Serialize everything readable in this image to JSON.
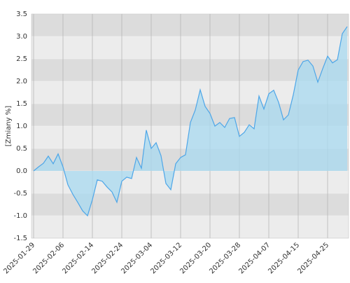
{
  "chart_data": {
    "type": "area",
    "y_label": "[Zmiany %]",
    "categories": [
      "2025-01-29",
      null,
      null,
      null,
      null,
      null,
      "2025-02-06",
      null,
      null,
      null,
      null,
      null,
      "2025-02-14",
      null,
      null,
      null,
      null,
      null,
      "2025-02-24",
      null,
      null,
      null,
      null,
      null,
      "2025-03-04",
      null,
      null,
      null,
      null,
      null,
      "2025-03-12",
      null,
      null,
      null,
      null,
      null,
      "2025-03-20",
      null,
      null,
      null,
      null,
      null,
      "2025-03-28",
      null,
      null,
      null,
      null,
      null,
      "2025-04-07",
      null,
      null,
      null,
      null,
      null,
      "2025-04-15",
      null,
      null,
      null,
      null,
      null,
      "2025-04-25",
      null,
      null,
      null,
      null
    ],
    "values": [
      0,
      0.09,
      0.17,
      0.33,
      0.16,
      0.38,
      0.09,
      -0.31,
      -0.52,
      -0.7,
      -0.89,
      -1.0,
      -0.64,
      -0.2,
      -0.23,
      -0.36,
      -0.47,
      -0.7,
      -0.23,
      -0.14,
      -0.17,
      0.3,
      0.06,
      0.91,
      0.5,
      0.63,
      0.34,
      -0.28,
      -0.42,
      0.16,
      0.3,
      0.36,
      1.08,
      1.36,
      1.81,
      1.44,
      1.28,
      1.0,
      1.08,
      0.97,
      1.17,
      1.19,
      0.77,
      0.86,
      1.03,
      0.94,
      1.67,
      1.38,
      1.72,
      1.8,
      1.53,
      1.14,
      1.25,
      1.7,
      2.25,
      2.44,
      2.47,
      2.34,
      1.98,
      2.28,
      2.56,
      2.41,
      2.48,
      3.06,
      3.22
    ],
    "color": "#4da6e8",
    "fill_color": "#a8daf0",
    "ylim": [
      -1.5,
      3.5
    ],
    "yticks": [
      -1.5,
      {
        "value": -1,
        "label": "-1.0"
      },
      -0.5,
      {
        "value": 0,
        "label": "0.0"
      },
      0.5,
      {
        "value": 1,
        "label": "1.0"
      },
      1.5,
      {
        "value": 2,
        "label": "2.0"
      },
      2.5,
      {
        "value": 3,
        "label": "3.0"
      },
      3.5
    ],
    "band_colors": [
      "#dcdcdc",
      "#ececec"
    ],
    "grid": true
  }
}
